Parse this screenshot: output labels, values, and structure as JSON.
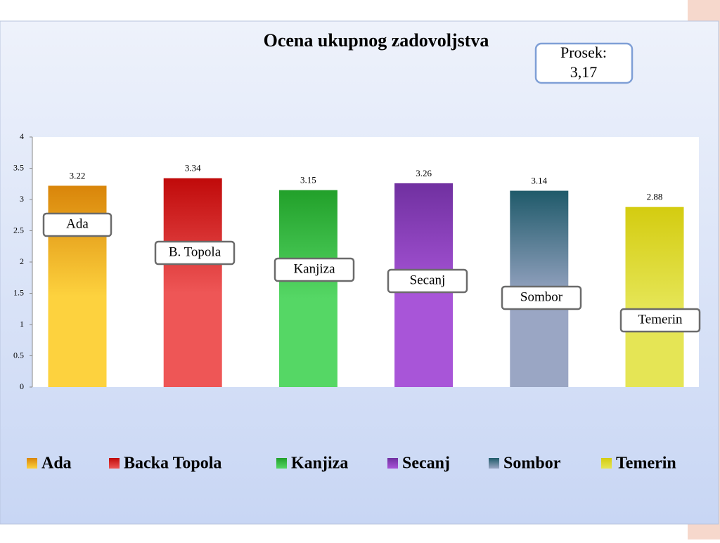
{
  "chart_data": {
    "type": "bar",
    "title": "Ocena ukupnog zadovoljstva",
    "average_label": "Prosek:",
    "average_value": "3,17",
    "series": [
      {
        "name": "Ada",
        "color": "#fdd23e",
        "color_top": "#d9850a",
        "values": [
          3.22
        ]
      },
      {
        "name": "Backa Topola",
        "color": "#ee5656",
        "color_top": "#c00a0a",
        "values": [
          3.34
        ]
      },
      {
        "name": "Kanjiza",
        "color": "#55d765",
        "color_top": "#22a02a",
        "values": [
          3.15
        ]
      },
      {
        "name": "Secanj",
        "color": "#a855d8",
        "color_top": "#7030a0",
        "values": [
          3.26
        ]
      },
      {
        "name": "Sombor",
        "color": "#9aa6c4",
        "color_top": "#1f5a6a",
        "values": [
          3.14
        ]
      },
      {
        "name": "Temerin",
        "color": "#e5e555",
        "color_top": "#d4cc10",
        "values": [
          2.88
        ]
      }
    ],
    "bar_labels": [
      "Ada",
      "B. Topola",
      "Kanjiza",
      "Secanj",
      "Sombor",
      "Temerin"
    ],
    "ylim": [
      0,
      4
    ],
    "yticks": [
      0,
      0.5,
      1,
      1.5,
      2,
      2.5,
      3,
      3.5,
      4
    ],
    "grid": false,
    "legend": "bottom"
  }
}
